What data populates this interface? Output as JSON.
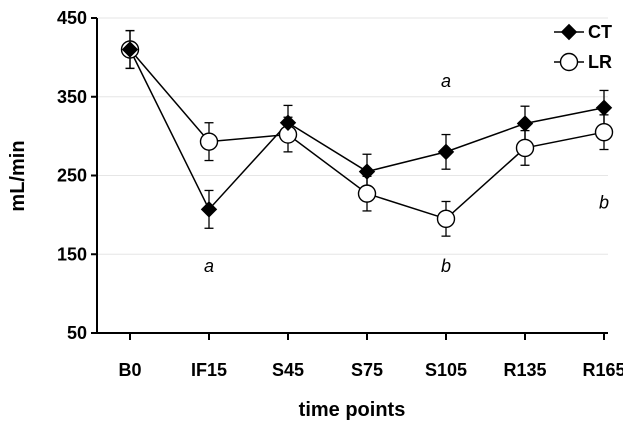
{
  "chart_data": {
    "type": "line",
    "title": "",
    "xlabel": "time points",
    "ylabel": "mL/min",
    "categories": [
      "B0",
      "IF15",
      "S45",
      "S75",
      "S105",
      "R135",
      "R165"
    ],
    "ylim": [
      50,
      450
    ],
    "yticks": [
      50,
      150,
      250,
      350,
      450
    ],
    "grid": true,
    "legend_position": "top-right",
    "series": [
      {
        "name": "CT",
        "marker": "filled-diamond",
        "values": [
          410,
          207,
          317,
          255,
          280,
          316,
          336
        ],
        "error": [
          24,
          24,
          22,
          22,
          22,
          22,
          22
        ]
      },
      {
        "name": "LR",
        "marker": "open-circle",
        "values": [
          410,
          293,
          302,
          227,
          195,
          285,
          305
        ],
        "error": [
          24,
          24,
          22,
          22,
          22,
          22,
          22
        ]
      }
    ],
    "annotations": [
      {
        "text": "a",
        "x": "IF15",
        "y": 135
      },
      {
        "text": "a",
        "x": "S105",
        "y": 370
      },
      {
        "text": "b",
        "x": "S105",
        "y": 135
      },
      {
        "text": "b",
        "x": "R165",
        "y": 216
      }
    ]
  }
}
